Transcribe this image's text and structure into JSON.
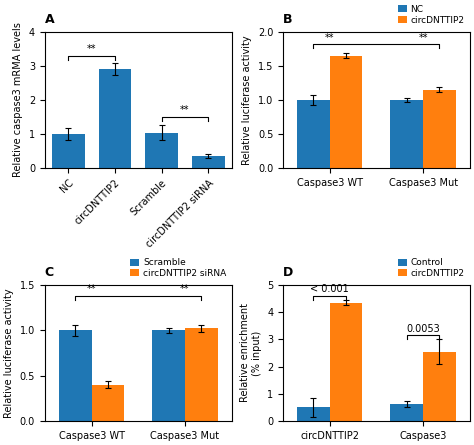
{
  "chart_data": [
    {
      "type": "bar",
      "title": "A",
      "ylabel": "Relative caspase3 mRMA levels",
      "categories": [
        "NC",
        "circDNTTIP2",
        "Scramble",
        "circDNTTIP2 siRNA"
      ],
      "series": [
        {
          "values": [
            1.0,
            2.9,
            1.03,
            0.35
          ],
          "errors": [
            0.18,
            0.18,
            0.22,
            0.07
          ]
        }
      ],
      "ylim": [
        0,
        4
      ],
      "yticks": [
        0,
        1,
        2,
        3,
        4
      ],
      "brackets": [
        {
          "from": "NC",
          "to": "circDNTTIP2",
          "y": 3.3
        },
        {
          "from": "Scramble",
          "to": "circDNTTIP2 siRNA",
          "y": 1.5
        }
      ],
      "annotations": [
        {
          "text": "**",
          "x": [
            "NC",
            "circDNTTIP2"
          ],
          "y": 3.3
        },
        {
          "text": "**",
          "x": [
            "Scramble",
            "circDNTTIP2 siRNA"
          ],
          "y": 1.5
        }
      ]
    },
    {
      "type": "bar",
      "title": "B",
      "ylabel": "Relative luciferase activity",
      "categories": [
        "Caspase3 WT",
        "Caspase3 Mut"
      ],
      "series": [
        {
          "name": "NC",
          "values": [
            1.0,
            1.0
          ],
          "errors": [
            0.07,
            0.025
          ]
        },
        {
          "name": "circDNTTIP2",
          "values": [
            1.65,
            1.15
          ],
          "errors": [
            0.04,
            0.04
          ]
        }
      ],
      "ylim": [
        0,
        2.0
      ],
      "yticks": [
        0.0,
        0.5,
        1.0,
        1.5,
        2.0
      ],
      "legend": "upper right",
      "brackets": [
        {
          "from": "Caspase3 WT",
          "from_series": "NC",
          "to": "Caspase3 Mut",
          "to_series": "circDNTTIP2",
          "y": 1.82
        }
      ],
      "annotations": [
        {
          "text": "**",
          "x": "Caspase3 WT",
          "y": 1.82
        },
        {
          "text": "**",
          "x": "Caspase3 Mut",
          "y": 1.82
        }
      ]
    },
    {
      "type": "bar",
      "title": "C",
      "ylabel": "Relative luciferase activity",
      "categories": [
        "Caspase3 WT",
        "Caspase3 Mut"
      ],
      "series": [
        {
          "name": "Scramble",
          "values": [
            1.0,
            1.0
          ],
          "errors": [
            0.06,
            0.025
          ]
        },
        {
          "name": "circDNTTIP2 siRNA",
          "values": [
            0.4,
            1.02
          ],
          "errors": [
            0.04,
            0.04
          ]
        }
      ],
      "ylim": [
        0,
        1.5
      ],
      "yticks": [
        0.0,
        0.5,
        1.0,
        1.5
      ],
      "legend": "upper right",
      "brackets": [
        {
          "from": "Caspase3 WT",
          "from_series": "Scramble",
          "to": "Caspase3 Mut",
          "to_series": "circDNTTIP2 siRNA",
          "y": 1.38
        }
      ],
      "annotations": [
        {
          "text": "**",
          "x": "Caspase3 WT",
          "y": 1.38
        },
        {
          "text": "**",
          "x": "Caspase3 Mut",
          "y": 1.38
        }
      ]
    },
    {
      "type": "bar",
      "title": "D",
      "ylabel": "Relative enrichment\n(% input)",
      "categories": [
        "circDNTTIP2",
        "Caspase3"
      ],
      "series": [
        {
          "name": "Control",
          "values": [
            0.5,
            0.62
          ],
          "errors": [
            0.35,
            0.1
          ]
        },
        {
          "name": "circDNTTIP2",
          "values": [
            4.35,
            2.55
          ],
          "errors": [
            0.08,
            0.45
          ]
        }
      ],
      "ylim": [
        0,
        5
      ],
      "yticks": [
        0,
        1,
        2,
        3,
        4,
        5
      ],
      "legend": "upper right",
      "brackets": [
        {
          "from": "circDNTTIP2",
          "from_series": "Control",
          "to": "circDNTTIP2",
          "to_series": "circDNTTIP2",
          "y": 4.6
        },
        {
          "from": "Caspase3",
          "from_series": "Control",
          "to": "Caspase3",
          "to_series": "circDNTTIP2",
          "y": 3.15
        }
      ],
      "annotations": [
        {
          "text": "< 0.001",
          "x": "circDNTTIP2",
          "y": 4.6
        },
        {
          "text": "0.0053",
          "x": "Caspase3",
          "y": 3.15
        }
      ]
    }
  ]
}
